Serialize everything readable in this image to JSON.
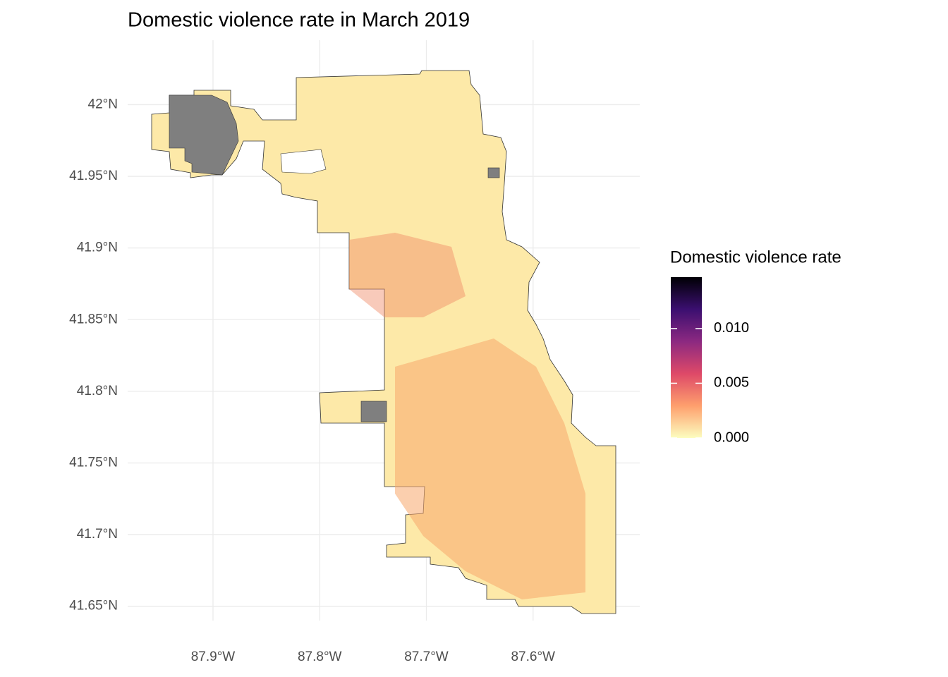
{
  "chart_data": {
    "type": "choropleth",
    "title": "Domestic violence rate in March 2019",
    "xlim": [
      -87.98,
      -87.5
    ],
    "ylim": [
      41.64,
      42.045
    ],
    "xticks": [
      {
        "value": -87.9,
        "label": "87.9°W"
      },
      {
        "value": -87.8,
        "label": "87.8°W"
      },
      {
        "value": -87.7,
        "label": "87.7°W"
      },
      {
        "value": -87.6,
        "label": "87.6°W"
      }
    ],
    "yticks": [
      {
        "value": 41.65,
        "label": "41.65°N"
      },
      {
        "value": 41.7,
        "label": "41.7°N"
      },
      {
        "value": 41.75,
        "label": "41.75°N"
      },
      {
        "value": 41.8,
        "label": "41.8°N"
      },
      {
        "value": 41.85,
        "label": "41.85°N"
      },
      {
        "value": 41.9,
        "label": "41.9°N"
      },
      {
        "value": 41.95,
        "label": "41.95°N"
      },
      {
        "value": 42,
        "label": "42°N"
      }
    ],
    "grid": true,
    "legend": {
      "position": "right",
      "title": "Domestic violence rate",
      "range": [
        0,
        0.0147
      ],
      "ticks": [
        {
          "value": 0,
          "label": "0.000"
        },
        {
          "value": 0.005,
          "label": "0.005"
        },
        {
          "value": 0.01,
          "label": "0.010"
        }
      ],
      "colors": [
        "#fcfdbf",
        "#fe9f6d",
        "#de4968",
        "#8c2981",
        "#3b0f70",
        "#000004"
      ]
    }
  }
}
